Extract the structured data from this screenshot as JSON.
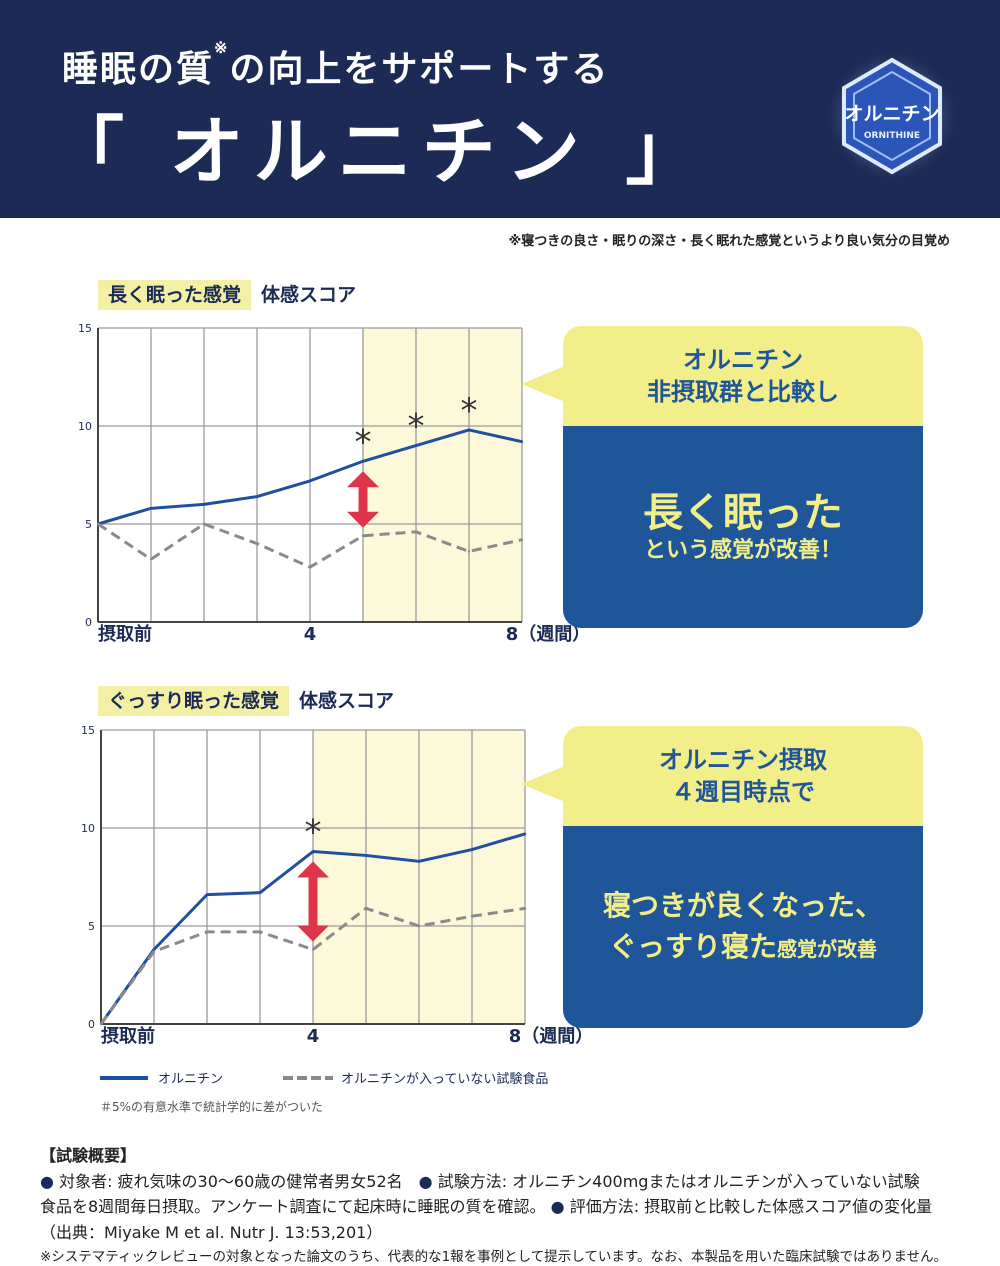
{
  "header": {
    "subtitle": "睡眠の質",
    "subtitle_mark": "※",
    "subtitle_rest": "の向上をサポートする",
    "title": "「 オルニチン 」",
    "badge_text": "オルニチン",
    "badge_sub": "ORNITHINE"
  },
  "footnote_top": "※寝つきの良さ・眠りの深さ・長く眠れた感覚というより良い気分の目覚め",
  "charts": [
    {
      "label_highlight": "長く眠った感覚",
      "label_plain": "体感スコア",
      "callout_top": [
        "オルニチン",
        "非摂取群と比較し"
      ],
      "callout_big": "長く眠った",
      "callout_small": "という感覚が改善！"
    },
    {
      "label_highlight": "ぐっすり眠った感覚",
      "label_plain": "体感スコア",
      "callout_top": [
        "オルニチン摂取",
        "４週目時点で"
      ],
      "callout_line1": "寝つきが良くなった、",
      "callout_line2_big": "ぐっすり寝た",
      "callout_line2_small": "感覚が改善"
    }
  ],
  "chart_data": [
    {
      "type": "line",
      "title": "長く眠った感覚 体感スコア",
      "x": [
        0,
        1,
        2,
        3,
        4,
        5,
        6,
        7,
        8
      ],
      "x_tick_labels": [
        "摂取前",
        "4",
        "8（週間）"
      ],
      "x_tick_positions": [
        0,
        4,
        8
      ],
      "ylim": [
        0,
        15
      ],
      "yticks": [
        0,
        5,
        10,
        15
      ],
      "grid": true,
      "highlight_x_range": [
        5,
        8
      ],
      "significance_marks": [
        5,
        6,
        7
      ],
      "significance_symbol": "*",
      "difference_arrow_x": 5,
      "series": [
        {
          "name": "オルニチン",
          "color": "#1f4fa0",
          "style": "solid",
          "values": [
            5.0,
            5.8,
            6.0,
            6.4,
            7.2,
            8.2,
            9.0,
            9.8,
            9.2
          ]
        },
        {
          "name": "オルニチンが入っていない試験食品",
          "color": "#8a8a8a",
          "style": "dashed",
          "values": [
            5.0,
            3.2,
            5.0,
            4.0,
            2.8,
            4.4,
            4.6,
            3.6,
            4.2
          ]
        }
      ]
    },
    {
      "type": "line",
      "title": "ぐっすり眠った感覚 体感スコア",
      "x": [
        0,
        1,
        2,
        3,
        4,
        5,
        6,
        7,
        8
      ],
      "x_tick_labels": [
        "摂取前",
        "4",
        "8（週間）"
      ],
      "x_tick_positions": [
        0,
        4,
        8
      ],
      "ylim": [
        0,
        15
      ],
      "yticks": [
        0,
        5,
        10,
        15
      ],
      "grid": true,
      "highlight_x_range": [
        4,
        8
      ],
      "significance_marks": [
        4
      ],
      "significance_symbol": "*",
      "difference_arrow_x": 4,
      "series": [
        {
          "name": "オルニチン",
          "color": "#1f4fa0",
          "style": "solid",
          "values": [
            0.0,
            3.8,
            6.6,
            6.7,
            8.8,
            8.6,
            8.3,
            8.9,
            9.7
          ]
        },
        {
          "name": "オルニチンが入っていない試験食品",
          "color": "#8a8a8a",
          "style": "dashed",
          "values": [
            0.0,
            3.7,
            4.7,
            4.7,
            3.8,
            5.9,
            5.0,
            5.5,
            5.9
          ]
        }
      ]
    }
  ],
  "legend": {
    "solid_label": "オルニチン",
    "dashed_label": "オルニチンが入っていない試験食品"
  },
  "significance_note": "＃5%の有意水準で統計学的に差がついた",
  "summary": {
    "title": "【試験概要】",
    "bullet": "●",
    "subjects": "対象者: 疲れ気味の30〜60歳の健常者男女52名",
    "method_a": "試験方法: オルニチン400mgまたはオルニチンが入っていない試験",
    "method_b": "食品を8週間毎日摂取。アンケート調査にて起床時に睡眠の質を確認。",
    "evaluation": "評価方法: 摂取前と比較した体感スコア値の変化量",
    "source": "（出典：Miyake M et al. Nutr J. 13:53,201）",
    "disclaimer": "※システマティックレビューの対象となった論文のうち、代表的な1報を事例として提示しています。なお、本製品を用いた臨床試験ではありません。"
  }
}
